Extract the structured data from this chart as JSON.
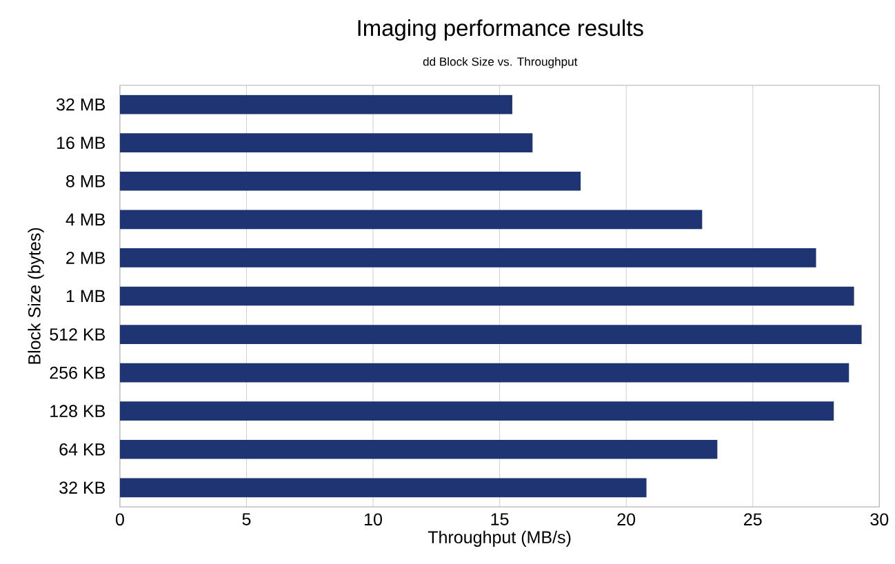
{
  "chart_data": {
    "type": "bar",
    "orientation": "horizontal",
    "title": "Imaging performance results",
    "subtitle": "dd Block Size vs. Throughput",
    "xlabel": "Throughput (MB/s)",
    "ylabel": "Block Size (bytes)",
    "categories": [
      "32 MB",
      "16 MB",
      "8 MB",
      "4 MB",
      "2 MB",
      "1 MB",
      "512 KB",
      "256 KB",
      "128 KB",
      "64 KB",
      "32 KB"
    ],
    "values": [
      15.5,
      16.3,
      18.2,
      23.0,
      27.5,
      29.0,
      29.3,
      28.8,
      28.2,
      23.6,
      20.8
    ],
    "color": "#1f3473",
    "xlim": [
      0,
      30
    ],
    "xticks": [
      0,
      5,
      10,
      15,
      20,
      25,
      30
    ],
    "grid": "x"
  }
}
